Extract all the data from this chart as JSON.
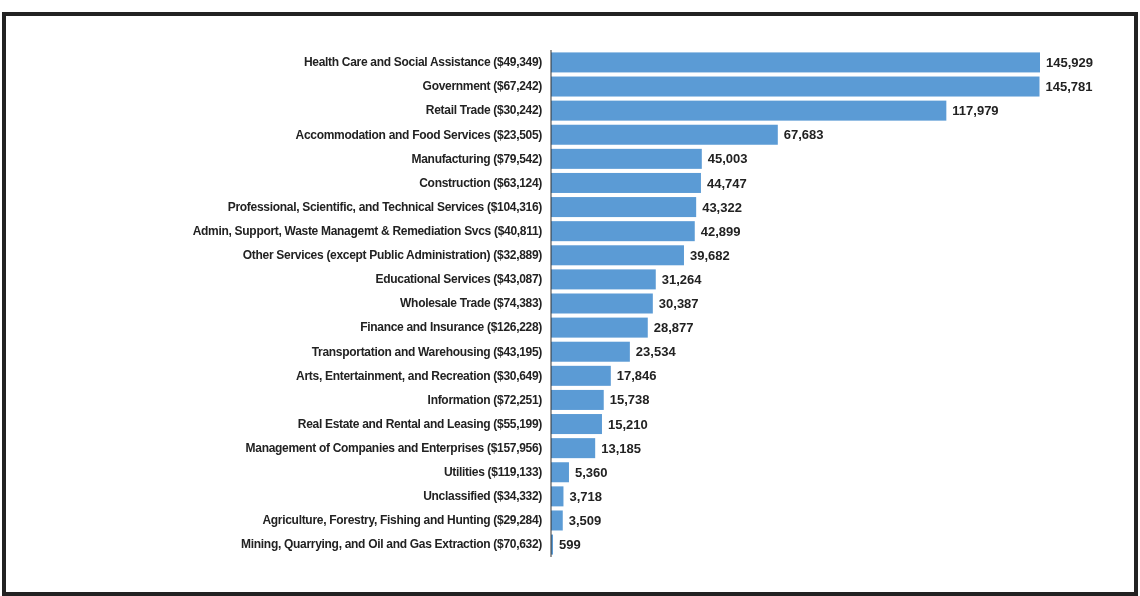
{
  "chart_data": {
    "type": "bar",
    "orientation": "horizontal",
    "value_labels": [
      "145,929",
      "145,781",
      "117,979",
      "67,683",
      "45,003",
      "44,747",
      "43,322",
      "42,899",
      "39,682",
      "31,264",
      "30,387",
      "28,877",
      "23,534",
      "17,846",
      "15,738",
      "15,210",
      "13,185",
      "5,360",
      "3,718",
      "3,509",
      "599"
    ],
    "categories": [
      "Health Care and Social Assistance ($49,349)",
      "Government ($67,242)",
      "Retail Trade ($30,242)",
      "Accommodation and Food Services ($23,505)",
      "Manufacturing ($79,542)",
      "Construction ($63,124)",
      "Professional, Scientific, and Technical Services ($104,316)",
      "Admin, Support, Waste Managemt & Remediation Svcs ($40,811)",
      "Other Services (except Public Administration) ($32,889)",
      "Educational Services ($43,087)",
      "Wholesale Trade ($74,383)",
      "Finance and Insurance ($126,228)",
      "Transportation and Warehousing ($43,195)",
      "Arts, Entertainment, and Recreation ($30,649)",
      "Information ($72,251)",
      "Real Estate and Rental and Leasing ($55,199)",
      "Management of Companies and Enterprises ($157,956)",
      "Utilities ($119,133)",
      "Unclassified ($34,332)",
      "Agriculture, Forestry, Fishing and Hunting ($29,284)",
      "Mining, Quarrying, and Oil and Gas Extraction ($70,632)"
    ],
    "values": [
      145929,
      145781,
      117979,
      67683,
      45003,
      44747,
      43322,
      42899,
      39682,
      31264,
      30387,
      28877,
      23534,
      17846,
      15738,
      15210,
      13185,
      5360,
      3718,
      3509,
      599
    ],
    "color": "#5b9bd5"
  }
}
